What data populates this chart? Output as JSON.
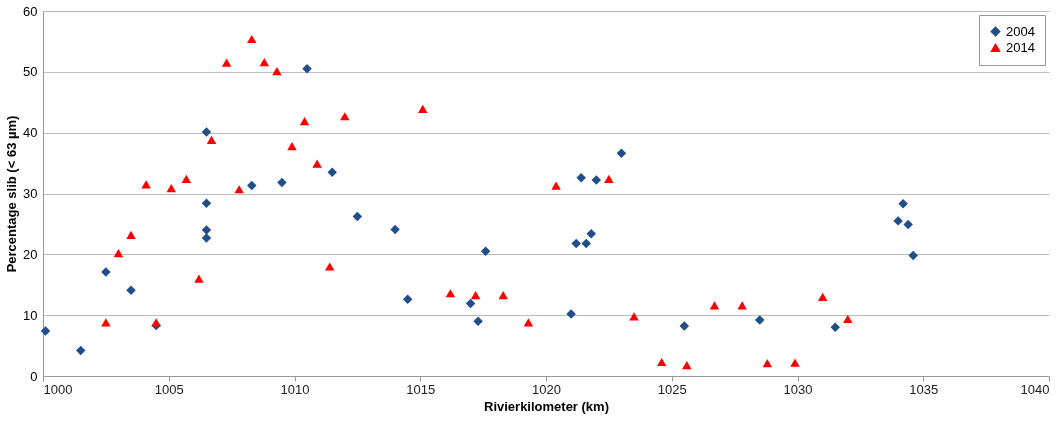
{
  "chart_data": {
    "type": "scatter",
    "xlabel": "Rivierkilometer (km)",
    "ylabel": "Percentage slib (< 63 µm)",
    "xlim": [
      1000,
      1040
    ],
    "xticks": [
      1000,
      1005,
      1010,
      1015,
      1020,
      1025,
      1030,
      1035,
      1040
    ],
    "ylim": [
      0,
      60
    ],
    "yticks": [
      0,
      10,
      20,
      30,
      40,
      50,
      60
    ],
    "grid": "y",
    "legend": "top right",
    "series": [
      {
        "name": "2004",
        "color": "#1f4e8c",
        "marker": "diamond",
        "x": [
          1000.1,
          1001.5,
          1002.5,
          1003.5,
          1004.5,
          1006.5,
          1006.5,
          1006.5,
          1006.5,
          1008.3,
          1009.5,
          1010.5,
          1011.5,
          1012.5,
          1014,
          1014.5,
          1017,
          1017.3,
          1017.6,
          1021,
          1021.2,
          1021.4,
          1021.6,
          1021.8,
          1022,
          1023,
          1025.5,
          1028.5,
          1031.5,
          1034,
          1034.2,
          1034.4,
          1034.6
        ],
        "values": [
          7.4,
          4.2,
          17.1,
          14.1,
          8.3,
          40.1,
          28.4,
          24.0,
          22.7,
          31.3,
          31.8,
          50.5,
          33.5,
          26.2,
          24.1,
          12.6,
          11.9,
          9.0,
          20.5,
          10.2,
          21.8,
          32.6,
          21.8,
          23.4,
          32.2,
          36.6,
          8.2,
          9.2,
          8.0,
          25.5,
          28.3,
          24.9,
          19.8
        ]
      },
      {
        "name": "2014",
        "color": "#ff0000",
        "marker": "triangle",
        "x": [
          1002.5,
          1003,
          1003.5,
          1004.1,
          1004.5,
          1005.1,
          1005.7,
          1006.2,
          1006.7,
          1007.3,
          1007.8,
          1008.3,
          1008.8,
          1009.3,
          1009.9,
          1010.4,
          1010.9,
          1011.4,
          1012,
          1015.1,
          1016.2,
          1017.2,
          1018.3,
          1019.3,
          1020.4,
          1022.5,
          1023.5,
          1024.6,
          1025.6,
          1026.7,
          1027.8,
          1028.8,
          1029.9,
          1031,
          1032
        ],
        "values": [
          8.8,
          20.2,
          23.2,
          31.5,
          8.8,
          30.9,
          32.4,
          16.0,
          38.8,
          51.5,
          30.7,
          55.4,
          51.6,
          50.1,
          37.8,
          41.9,
          34.9,
          18.0,
          42.7,
          43.9,
          13.6,
          13.3,
          13.3,
          8.8,
          31.3,
          32.4,
          9.8,
          2.3,
          1.8,
          11.6,
          11.6,
          2.1,
          2.2,
          13.0,
          9.4
        ]
      }
    ]
  }
}
